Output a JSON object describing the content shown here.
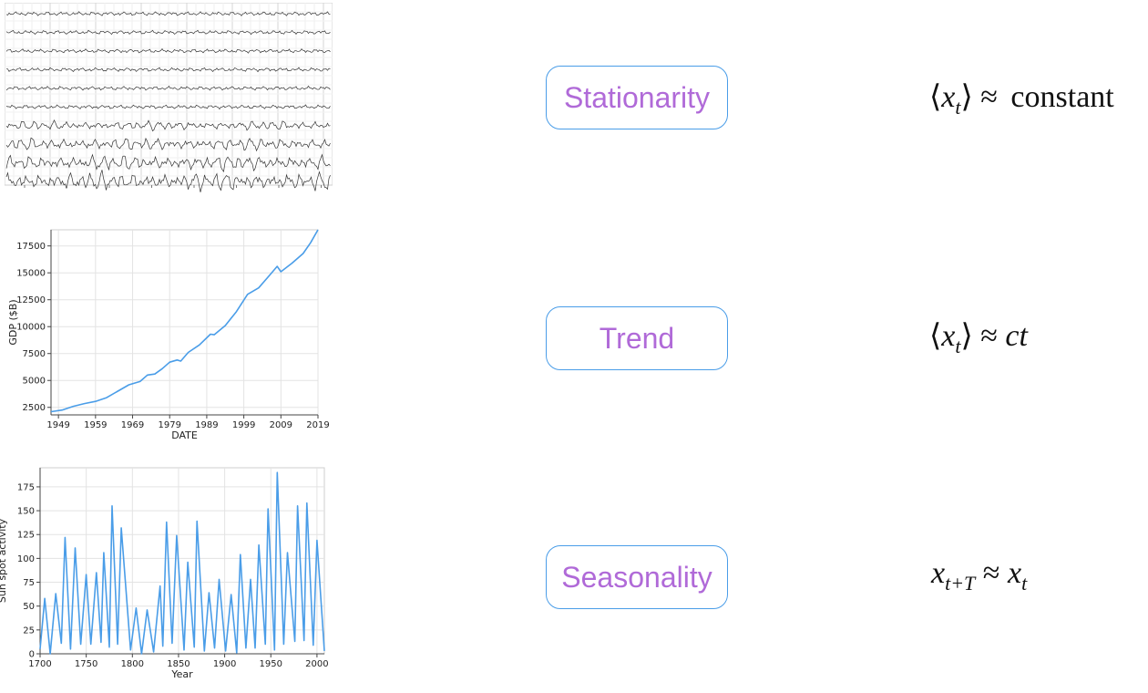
{
  "rows": [
    {
      "label": "Stationarity",
      "formula": {
        "lang": "⟨",
        "var": "x",
        "sub": "t",
        "rang": "⟩",
        "rel": " ≈ ",
        "rhs": "constant"
      }
    },
    {
      "label": "Trend",
      "formula": {
        "lang": "⟨",
        "var": "x",
        "sub": "t",
        "rang": "⟩",
        "rel": " ≈ ",
        "rhs": "ct"
      }
    },
    {
      "label": "Seasonality",
      "formula": {
        "var": "x",
        "sub": "t+T",
        "rel": " ≈ ",
        "var2": "x",
        "sub2": "t"
      }
    }
  ],
  "chart_data": [
    {
      "type": "line",
      "description_kind": "multichannel-trace",
      "channels": 10,
      "grid": true,
      "tick_labels_legible": false
    },
    {
      "type": "line",
      "xlabel": "DATE",
      "ylabel": "GDP ($B)",
      "xlim": [
        1947,
        2019
      ],
      "ylim": [
        1800,
        19000
      ],
      "xticks": [
        "1949",
        "1959",
        "1969",
        "1979",
        "1989",
        "1999",
        "2009",
        "2019"
      ],
      "yticks": [
        "2500",
        "5000",
        "7500",
        "10000",
        "12500",
        "15000",
        "17500"
      ],
      "grid": true,
      "color": "#4a9de8",
      "series": [
        {
          "x": [
            1947,
            1950,
            1953,
            1956,
            1959,
            1962,
            1965,
            1968,
            1971,
            1973,
            1975,
            1977,
            1979,
            1981,
            1982,
            1984,
            1987,
            1990,
            1991,
            1994,
            1997,
            2000,
            2003,
            2006,
            2008,
            2009,
            2012,
            2015,
            2017,
            2019
          ],
          "values": [
            2100,
            2250,
            2600,
            2850,
            3050,
            3400,
            4000,
            4600,
            4900,
            5500,
            5600,
            6100,
            6700,
            6900,
            6800,
            7600,
            8300,
            9300,
            9250,
            10100,
            11400,
            13000,
            13600,
            14800,
            15600,
            15100,
            15900,
            16800,
            17800,
            19000
          ]
        }
      ]
    },
    {
      "type": "line",
      "xlabel": "Year",
      "ylabel": "Sun spot activity",
      "xlim": [
        1700,
        2008
      ],
      "ylim": [
        0,
        195
      ],
      "xticks": [
        "1700",
        "1750",
        "1800",
        "1850",
        "1900",
        "1950",
        "2000"
      ],
      "yticks": [
        "0",
        "25",
        "50",
        "75",
        "100",
        "125",
        "150",
        "175"
      ],
      "grid": true,
      "color": "#4a9de8",
      "series": [
        {
          "x": [
            1700,
            1705,
            1711,
            1717,
            1723,
            1727,
            1733,
            1738,
            1744,
            1750,
            1755,
            1761,
            1766,
            1769,
            1775,
            1778,
            1784,
            1788,
            1798,
            1804,
            1810,
            1816,
            1823,
            1830,
            1833,
            1837,
            1843,
            1848,
            1856,
            1860,
            1867,
            1870,
            1878,
            1883,
            1889,
            1894,
            1901,
            1907,
            1913,
            1917,
            1923,
            1928,
            1933,
            1937,
            1944,
            1947,
            1954,
            1957,
            1964,
            1968,
            1976,
            1979,
            1986,
            1989,
            1996,
            2000,
            2008
          ],
          "values": [
            5,
            58,
            0,
            63,
            11,
            122,
            5,
            111,
            10,
            83,
            10,
            85,
            12,
            106,
            7,
            155,
            10,
            132,
            4,
            48,
            0,
            46,
            2,
            71,
            8,
            138,
            11,
            124,
            4,
            96,
            7,
            139,
            3,
            64,
            6,
            78,
            3,
            62,
            1,
            104,
            6,
            78,
            6,
            114,
            10,
            152,
            4,
            190,
            10,
            106,
            13,
            155,
            14,
            158,
            9,
            119,
            3
          ]
        }
      ]
    }
  ]
}
